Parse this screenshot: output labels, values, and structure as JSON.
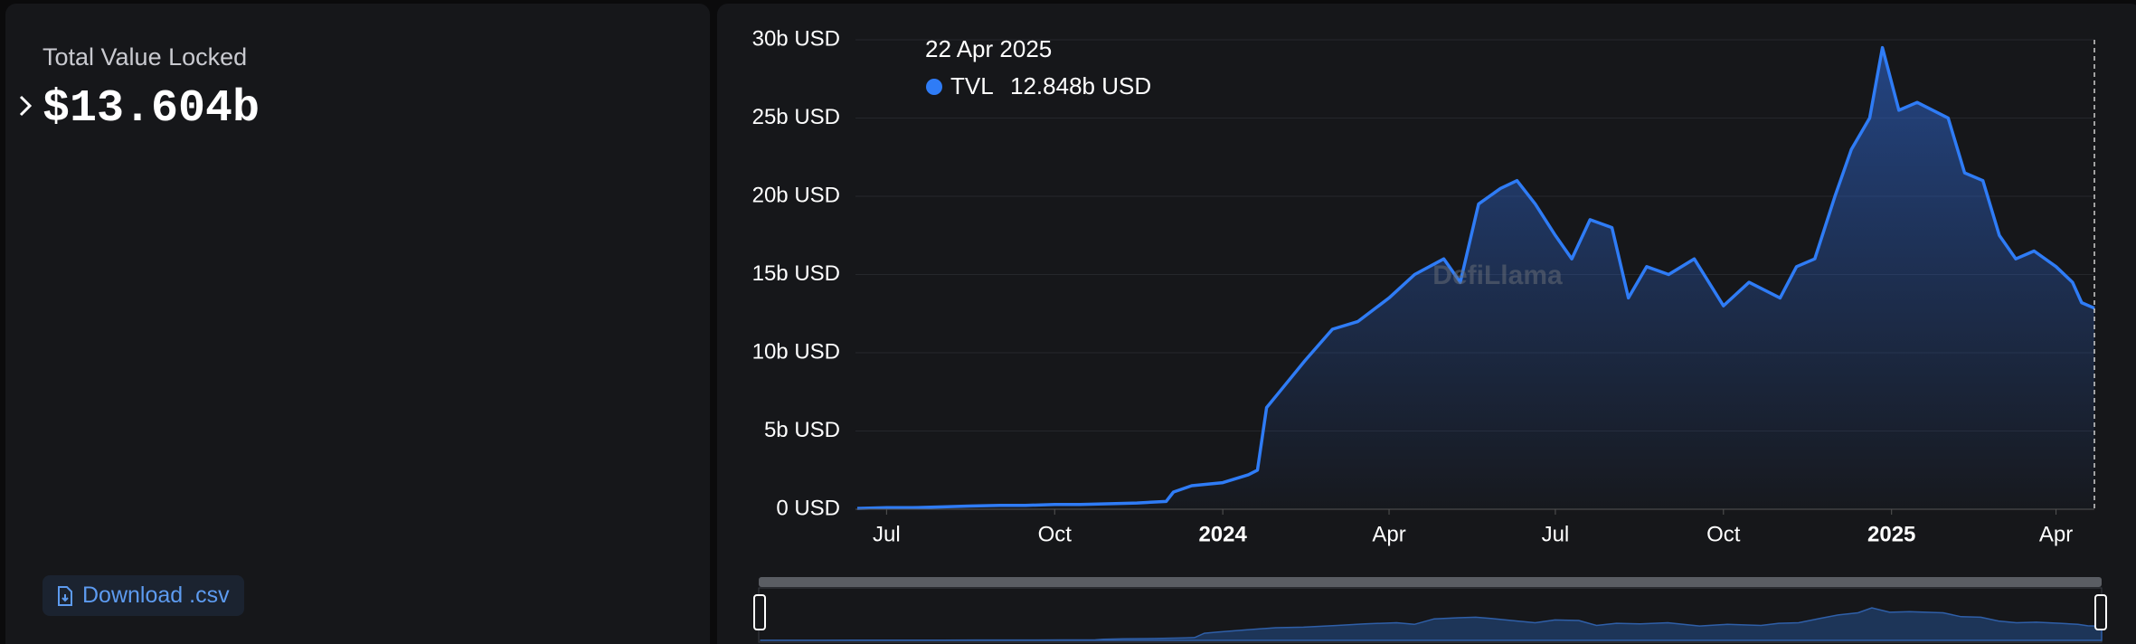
{
  "summary": {
    "label": "Total Value Locked",
    "value": "$13.604b"
  },
  "download_button": "Download .csv",
  "tooltip": {
    "date": "22 Apr 2025",
    "series": "TVL",
    "value": "12.848b USD"
  },
  "watermark": "DefiLlama",
  "chart_data": {
    "type": "area",
    "x": [
      "2023-06-15",
      "2023-07-01",
      "2023-07-15",
      "2023-08-01",
      "2023-08-15",
      "2023-09-01",
      "2023-09-15",
      "2023-10-01",
      "2023-10-15",
      "2023-11-01",
      "2023-11-15",
      "2023-12-01",
      "2023-12-05",
      "2023-12-15",
      "2024-01-01",
      "2024-01-15",
      "2024-01-20",
      "2024-01-25",
      "2024-02-01",
      "2024-02-15",
      "2024-03-01",
      "2024-03-15",
      "2024-04-01",
      "2024-04-15",
      "2024-05-01",
      "2024-05-10",
      "2024-05-20",
      "2024-06-01",
      "2024-06-10",
      "2024-06-20",
      "2024-07-01",
      "2024-07-10",
      "2024-07-20",
      "2024-08-01",
      "2024-08-10",
      "2024-08-20",
      "2024-09-01",
      "2024-09-15",
      "2024-10-01",
      "2024-10-15",
      "2024-11-01",
      "2024-11-10",
      "2024-11-20",
      "2024-12-01",
      "2024-12-10",
      "2024-12-20",
      "2024-12-27",
      "2025-01-05",
      "2025-01-15",
      "2025-02-01",
      "2025-02-10",
      "2025-02-20",
      "2025-03-01",
      "2025-03-10",
      "2025-03-20",
      "2025-04-01",
      "2025-04-10",
      "2025-04-15",
      "2025-04-22"
    ],
    "series": [
      {
        "name": "TVL",
        "color": "#2f7cf6",
        "values": [
          0.05,
          0.1,
          0.1,
          0.15,
          0.2,
          0.25,
          0.25,
          0.3,
          0.3,
          0.35,
          0.4,
          0.5,
          1.1,
          1.5,
          1.7,
          2.2,
          2.5,
          6.5,
          7.5,
          9.5,
          11.5,
          12.0,
          13.5,
          15.0,
          16.0,
          14.5,
          19.5,
          20.5,
          21.0,
          19.5,
          17.5,
          16.0,
          18.5,
          18.0,
          13.5,
          15.5,
          15.0,
          16.0,
          13.0,
          14.5,
          13.5,
          15.5,
          16.0,
          20.0,
          23.0,
          25.0,
          29.5,
          25.5,
          26.0,
          25.0,
          21.5,
          21.0,
          17.5,
          16.0,
          16.5,
          15.5,
          14.5,
          13.2,
          12.848
        ]
      }
    ],
    "xlim": [
      "2023-06-14",
      "2025-04-22"
    ],
    "xticks": [
      {
        "value": "2023-07-01",
        "label": "Jul"
      },
      {
        "value": "2023-10-01",
        "label": "Oct"
      },
      {
        "value": "2024-01-01",
        "label": "2024"
      },
      {
        "value": "2024-04-01",
        "label": "Apr"
      },
      {
        "value": "2024-07-01",
        "label": "Jul"
      },
      {
        "value": "2024-10-01",
        "label": "Oct"
      },
      {
        "value": "2025-01-01",
        "label": "2025"
      },
      {
        "value": "2025-04-01",
        "label": "Apr"
      }
    ],
    "ylim": [
      0,
      30
    ],
    "yticks": [
      {
        "value": 0,
        "label": "0 USD"
      },
      {
        "value": 5,
        "label": "5b USD"
      },
      {
        "value": 10,
        "label": "10b USD"
      },
      {
        "value": 15,
        "label": "15b USD"
      },
      {
        "value": 20,
        "label": "20b USD"
      },
      {
        "value": 25,
        "label": "25b USD"
      },
      {
        "value": 30,
        "label": "30b USD"
      }
    ],
    "grid": true
  }
}
